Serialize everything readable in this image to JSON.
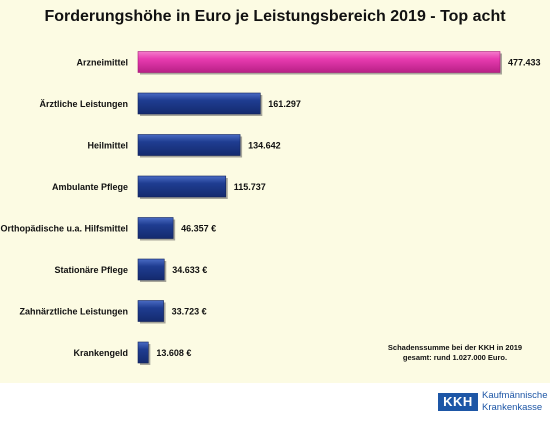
{
  "title": "Forderungshöhe in Euro je Leistungsbereich 2019 - Top acht",
  "note": [
    "Schadenssumme bei der KKH in 2019",
    "gesamt: rund 1.027.000 Euro."
  ],
  "logo": {
    "short": "KKH",
    "line1": "Kaufmännische",
    "line2": "Krankenkasse"
  },
  "colors": {
    "highlight": "#e83cb0",
    "bar": "#1f3d91",
    "background": "#fcfbe3",
    "brand": "#1d56a6"
  },
  "chart_data": {
    "type": "bar",
    "orientation": "horizontal",
    "title": "Forderungshöhe in Euro je Leistungsbereich 2019 - Top acht",
    "xlabel": "",
    "ylabel": "",
    "grid": false,
    "categories": [
      "Arzneimittel",
      "Ärztliche Leistungen",
      "Heilmittel",
      "Ambulante Pflege",
      "Orthopädische u.a. Hilfsmittel",
      "Stationäre Pflege",
      "Zahnärztliche Leistungen",
      "Krankengeld"
    ],
    "values": [
      477433,
      161297,
      134642,
      115737,
      46357,
      34633,
      33723,
      13608
    ],
    "labels": [
      "477.433",
      "161.297",
      "134.642",
      "115.737",
      "46.357 €",
      "34.633 €",
      "33.723 €",
      "13.608 €"
    ],
    "highlight_index": 0,
    "xlim": [
      0,
      477433
    ]
  }
}
